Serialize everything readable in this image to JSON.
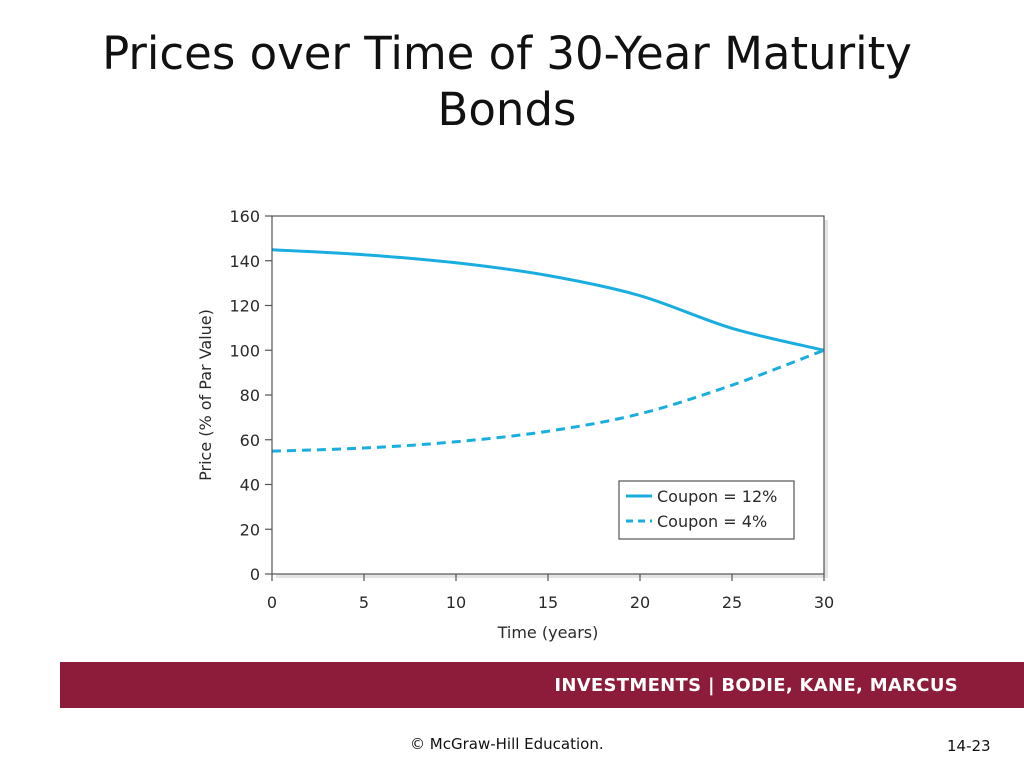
{
  "slide": {
    "title": "Prices over Time of 30-Year Maturity Bonds",
    "footer_text": "INVESTMENTS | BODIE, KANE, MARCUS",
    "copyright": "© McGraw-Hill Education.",
    "page_number": "14-23"
  },
  "colors": {
    "series": "#1aaee0",
    "footer_bar": "#8c1c3a"
  },
  "chart_data": {
    "type": "line",
    "title": "",
    "xlabel": "Time (years)",
    "ylabel": "Price (% of Par Value)",
    "xlim": [
      0,
      30
    ],
    "ylim": [
      0,
      160
    ],
    "xticks": [
      "0",
      "5",
      "10",
      "15",
      "20",
      "25",
      "30"
    ],
    "yticks": [
      "0",
      "20",
      "40",
      "60",
      "80",
      "100",
      "120",
      "140",
      "160"
    ],
    "grid": false,
    "legend_position": "bottom-right",
    "series": [
      {
        "name": "Coupon = 12%",
        "style": "solid",
        "x": [
          0,
          5,
          10,
          15,
          20,
          25,
          30
        ],
        "y": [
          144.9,
          142.7,
          139.1,
          133.4,
          124.4,
          109.8,
          100
        ]
      },
      {
        "name": "Coupon = 4%",
        "style": "dashed",
        "x": [
          0,
          5,
          10,
          15,
          20,
          25,
          30
        ],
        "y": [
          54.9,
          56.3,
          59.1,
          63.8,
          71.6,
          84.4,
          100
        ]
      }
    ]
  }
}
